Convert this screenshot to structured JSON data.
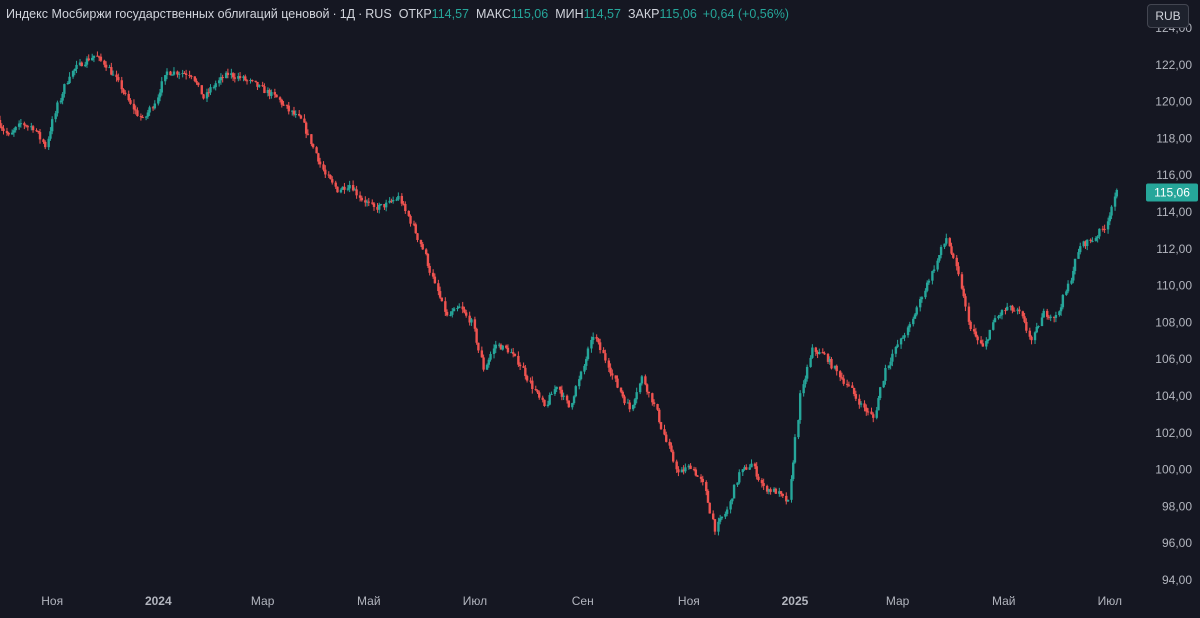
{
  "header": {
    "title": "Индекс Мосбиржи государственных облигаций ценовой",
    "interval": "1Д",
    "exchange": "RUS",
    "open_label": "ОТКР",
    "open_value": "114,57",
    "high_label": "МАКС",
    "high_value": "115,06",
    "low_label": "МИН",
    "low_value": "114,57",
    "close_label": "ЗАКР",
    "close_value": "115,06",
    "change": "+0,64 (+0,56%)",
    "currency_button": "RUB"
  },
  "price_badge": "115,06",
  "colors": {
    "background": "#151722",
    "up": "#26a69a",
    "down": "#ef5350",
    "axis_text": "#b2b5be",
    "badge": "#26a69a"
  },
  "chart_data": {
    "type": "candlestick",
    "title": "Индекс Мосбиржи государственных облигаций ценовой",
    "interval": "1Д",
    "currency": "RUB",
    "ylim": [
      94,
      124
    ],
    "y_ticks": [
      "94,00",
      "96,00",
      "98,00",
      "100,00",
      "102,00",
      "104,00",
      "106,00",
      "108,00",
      "110,00",
      "112,00",
      "114,00",
      "116,00",
      "118,00",
      "120,00",
      "122,00",
      "124,00"
    ],
    "x_ticks": [
      {
        "label": "Ноя",
        "date": "2023-11-01",
        "bold": false
      },
      {
        "label": "2024",
        "date": "2024-01-01",
        "bold": true
      },
      {
        "label": "Мар",
        "date": "2024-03-01",
        "bold": false
      },
      {
        "label": "Май",
        "date": "2024-05-01",
        "bold": false
      },
      {
        "label": "Июл",
        "date": "2024-07-01",
        "bold": false
      },
      {
        "label": "Сен",
        "date": "2024-09-01",
        "bold": false
      },
      {
        "label": "Ноя",
        "date": "2024-11-01",
        "bold": false
      },
      {
        "label": "2025",
        "date": "2025-01-01",
        "bold": true
      },
      {
        "label": "Мар",
        "date": "2025-03-01",
        "bold": false
      },
      {
        "label": "Май",
        "date": "2025-05-01",
        "bold": false
      },
      {
        "label": "Июл",
        "date": "2025-07-01",
        "bold": false
      }
    ],
    "x_range": [
      "2023-10-02",
      "2025-07-08"
    ],
    "last_price": 115.06,
    "series": [
      {
        "values": [
          [
            "2023-10-02",
            119.0
          ],
          [
            "2023-10-09",
            118.1
          ],
          [
            "2023-10-16",
            118.8
          ],
          [
            "2023-10-23",
            118.6
          ],
          [
            "2023-10-30",
            117.6
          ],
          [
            "2023-11-06",
            119.8
          ],
          [
            "2023-11-13",
            121.5
          ],
          [
            "2023-11-20",
            122.1
          ],
          [
            "2023-11-27",
            122.5
          ],
          [
            "2023-12-04",
            122.0
          ],
          [
            "2023-12-11",
            121.0
          ],
          [
            "2023-12-18",
            119.8
          ],
          [
            "2023-12-25",
            119.0
          ],
          [
            "2024-01-01",
            120.0
          ],
          [
            "2024-01-08",
            121.6
          ],
          [
            "2024-01-15",
            121.6
          ],
          [
            "2024-01-22",
            121.5
          ],
          [
            "2024-01-29",
            120.2
          ],
          [
            "2024-02-05",
            121.0
          ],
          [
            "2024-02-12",
            121.5
          ],
          [
            "2024-02-19",
            121.3
          ],
          [
            "2024-02-26",
            121.0
          ],
          [
            "2024-03-04",
            120.6
          ],
          [
            "2024-03-11",
            120.2
          ],
          [
            "2024-03-18",
            119.5
          ],
          [
            "2024-03-25",
            119.0
          ],
          [
            "2024-04-01",
            117.5
          ],
          [
            "2024-04-08",
            116.0
          ],
          [
            "2024-04-15",
            115.2
          ],
          [
            "2024-04-22",
            115.5
          ],
          [
            "2024-04-29",
            114.7
          ],
          [
            "2024-05-06",
            114.2
          ],
          [
            "2024-05-13",
            114.4
          ],
          [
            "2024-05-20",
            114.8
          ],
          [
            "2024-05-27",
            113.5
          ],
          [
            "2024-06-03",
            112.0
          ],
          [
            "2024-06-10",
            110.0
          ],
          [
            "2024-06-17",
            108.3
          ],
          [
            "2024-06-24",
            108.8
          ],
          [
            "2024-07-01",
            108.0
          ],
          [
            "2024-07-08",
            105.5
          ],
          [
            "2024-07-15",
            106.8
          ],
          [
            "2024-07-22",
            106.5
          ],
          [
            "2024-07-29",
            105.7
          ],
          [
            "2024-08-05",
            104.5
          ],
          [
            "2024-08-12",
            103.4
          ],
          [
            "2024-08-19",
            104.6
          ],
          [
            "2024-08-26",
            103.4
          ],
          [
            "2024-09-02",
            105.2
          ],
          [
            "2024-09-09",
            107.3
          ],
          [
            "2024-09-16",
            106.0
          ],
          [
            "2024-09-23",
            104.5
          ],
          [
            "2024-09-30",
            103.3
          ],
          [
            "2024-10-07",
            105.0
          ],
          [
            "2024-10-14",
            103.5
          ],
          [
            "2024-10-21",
            101.5
          ],
          [
            "2024-10-28",
            99.8
          ],
          [
            "2024-11-04",
            100.2
          ],
          [
            "2024-11-11",
            99.2
          ],
          [
            "2024-11-18",
            96.8
          ],
          [
            "2024-11-25",
            97.8
          ],
          [
            "2024-12-02",
            99.8
          ],
          [
            "2024-12-09",
            100.3
          ],
          [
            "2024-12-16",
            99.0
          ],
          [
            "2024-12-23",
            98.8
          ],
          [
            "2024-12-30",
            98.2
          ],
          [
            "2025-01-06",
            104.0
          ],
          [
            "2025-01-13",
            106.5
          ],
          [
            "2025-01-20",
            106.2
          ],
          [
            "2025-01-27",
            105.3
          ],
          [
            "2025-02-03",
            104.5
          ],
          [
            "2025-02-10",
            103.5
          ],
          [
            "2025-02-17",
            102.8
          ],
          [
            "2025-02-24",
            105.5
          ],
          [
            "2025-03-03",
            106.8
          ],
          [
            "2025-03-10",
            107.8
          ],
          [
            "2025-03-17",
            109.5
          ],
          [
            "2025-03-24",
            111.0
          ],
          [
            "2025-03-31",
            112.6
          ],
          [
            "2025-04-07",
            110.5
          ],
          [
            "2025-04-14",
            107.6
          ],
          [
            "2025-04-21",
            106.6
          ],
          [
            "2025-04-28",
            108.2
          ],
          [
            "2025-05-05",
            108.8
          ],
          [
            "2025-05-12",
            108.5
          ],
          [
            "2025-05-19",
            107.0
          ],
          [
            "2025-05-26",
            108.5
          ],
          [
            "2025-06-02",
            108.3
          ],
          [
            "2025-06-09",
            110.0
          ],
          [
            "2025-06-16",
            112.2
          ],
          [
            "2025-06-23",
            112.5
          ],
          [
            "2025-06-30",
            113.2
          ],
          [
            "2025-07-07",
            115.06
          ]
        ]
      }
    ]
  }
}
